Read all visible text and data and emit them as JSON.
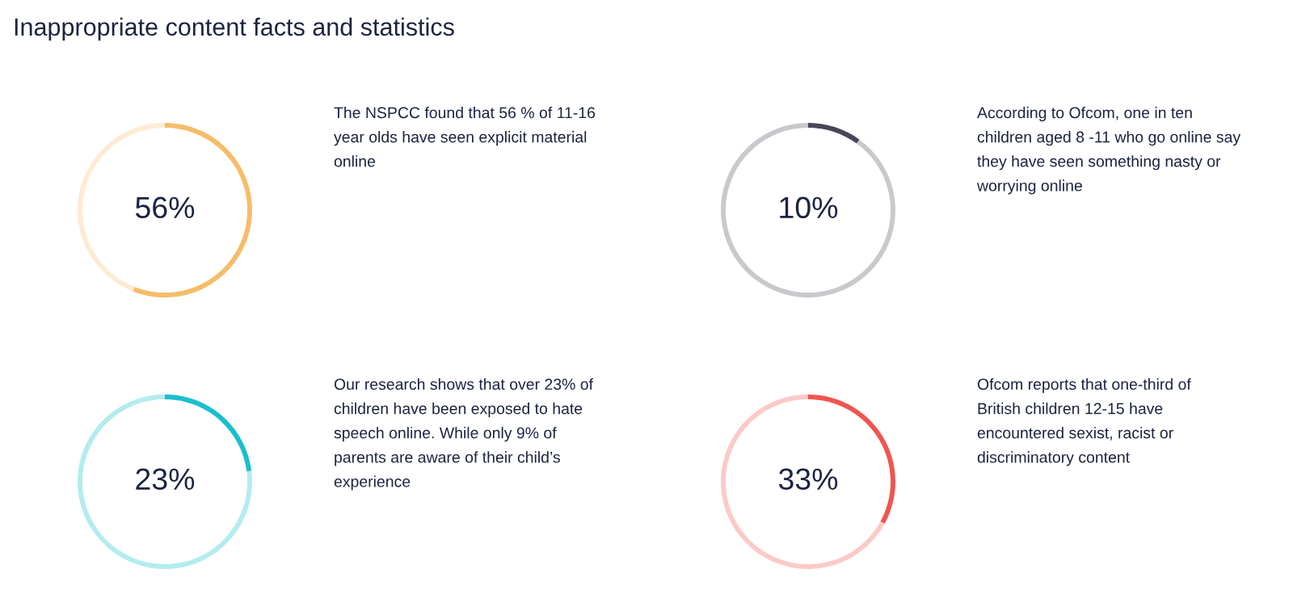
{
  "chart_data": [
    {
      "type": "donut",
      "title": "Inappropriate content facts and statistics",
      "categories": [
        null,
        null
      ],
      "values": [
        56,
        44
      ],
      "colors": [
        "#f5bd6a",
        "#fdebd3"
      ],
      "annotations": [
        "56%",
        "The NSPCC found that 56 % of 11-16\nyear olds have seen explicit material\nonline"
      ]
    },
    {
      "type": "donut",
      "categories": [
        null,
        null
      ],
      "values": [
        10,
        90
      ],
      "colors": [
        "#4a4458",
        "#c9c8cd"
      ],
      "annotations": [
        "10%",
        "According to Ofcom, one in ten\nchildren aged 8 -11 who go online say\nthey have seen something nasty or\nworrying online"
      ]
    },
    {
      "type": "donut",
      "categories": [
        null,
        null
      ],
      "values": [
        23,
        77
      ],
      "colors": [
        "#1abfcc",
        "#b3ecef"
      ],
      "annotations": [
        "23%",
        "Our research shows that over 23% of\nchildren have been exposed to hate\nspeech online. While only 9% of\nparents are aware of their child’s\nexperience"
      ]
    },
    {
      "type": "donut",
      "categories": [
        null,
        null
      ],
      "values": [
        33,
        67
      ],
      "colors": [
        "#f0554f",
        "#fccac8"
      ],
      "annotations": [
        "33%",
        "Ofcom reports that one-third of\nBritish children 12-15 have\nencountered sexist, racist or\ndiscriminatory content"
      ]
    }
  ]
}
